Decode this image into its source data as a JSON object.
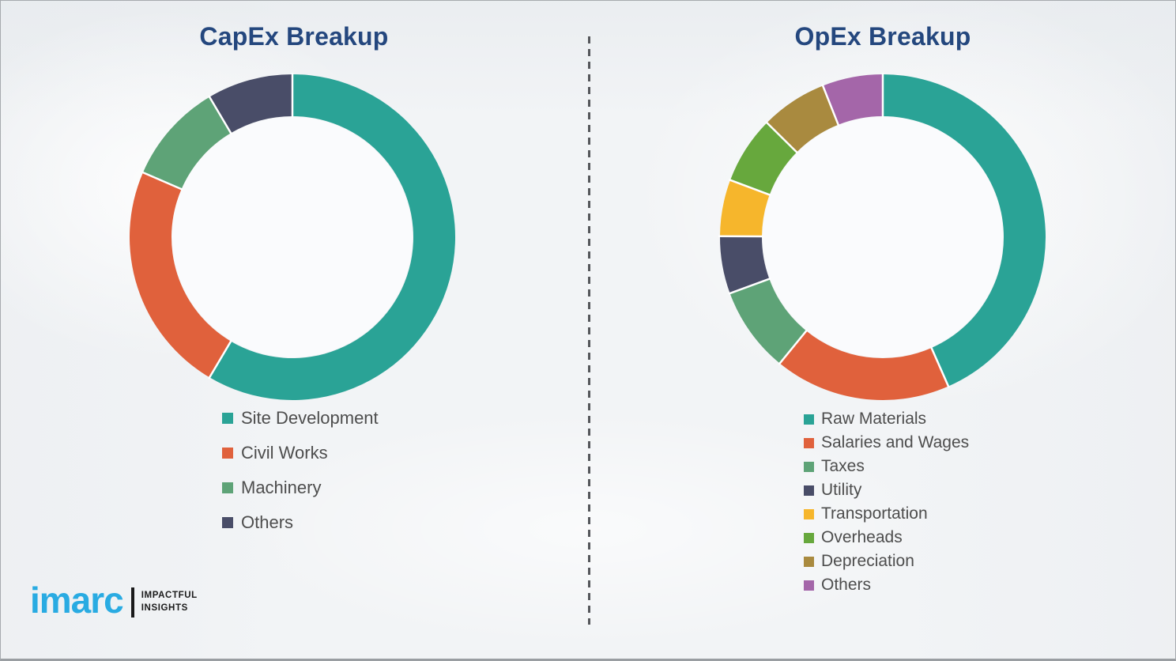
{
  "page": {
    "background_color": "#f2f4f6",
    "border_color": "#a6aaae",
    "title_color": "#24477e",
    "legend_text_color": "#4d4d4d",
    "divider": {
      "style": "dashed",
      "color": "#54565a"
    }
  },
  "logo": {
    "brand": "imarc",
    "brand_color": "#29abe2",
    "tagline_line1": "IMPACTFUL",
    "tagline_line2": "INSIGHTS"
  },
  "chart_data": [
    {
      "type": "pie",
      "variant": "donut",
      "title": "CapEx Breakup",
      "legend_position": "bottom-left",
      "unit": "percent",
      "start_angle_deg": 0,
      "direction": "clockwise",
      "segments": [
        {
          "label": "Site Development",
          "value": 58.5,
          "color": "#2aa396"
        },
        {
          "label": "Civil Works",
          "value": 23.0,
          "color": "#e0613c"
        },
        {
          "label": "Machinery",
          "value": 10.0,
          "color": "#5ea377"
        },
        {
          "label": "Others",
          "value": 8.5,
          "color": "#494d68"
        }
      ]
    },
    {
      "type": "pie",
      "variant": "donut",
      "title": "OpEx Breakup",
      "legend_position": "bottom-left",
      "unit": "percent",
      "start_angle_deg": 0,
      "direction": "clockwise",
      "segments": [
        {
          "label": "Raw Materials",
          "value": 43.4,
          "color": "#2aa396"
        },
        {
          "label": "Salaries and Wages",
          "value": 17.5,
          "color": "#e0613c"
        },
        {
          "label": "Taxes",
          "value": 8.5,
          "color": "#5ea377"
        },
        {
          "label": "Utility",
          "value": 5.7,
          "color": "#494d68"
        },
        {
          "label": "Transportation",
          "value": 5.6,
          "color": "#f6b62c"
        },
        {
          "label": "Overheads",
          "value": 6.7,
          "color": "#67a83d"
        },
        {
          "label": "Depreciation",
          "value": 6.6,
          "color": "#a98a3f"
        },
        {
          "label": "Others",
          "value": 6.0,
          "color": "#a466a9"
        }
      ]
    }
  ]
}
